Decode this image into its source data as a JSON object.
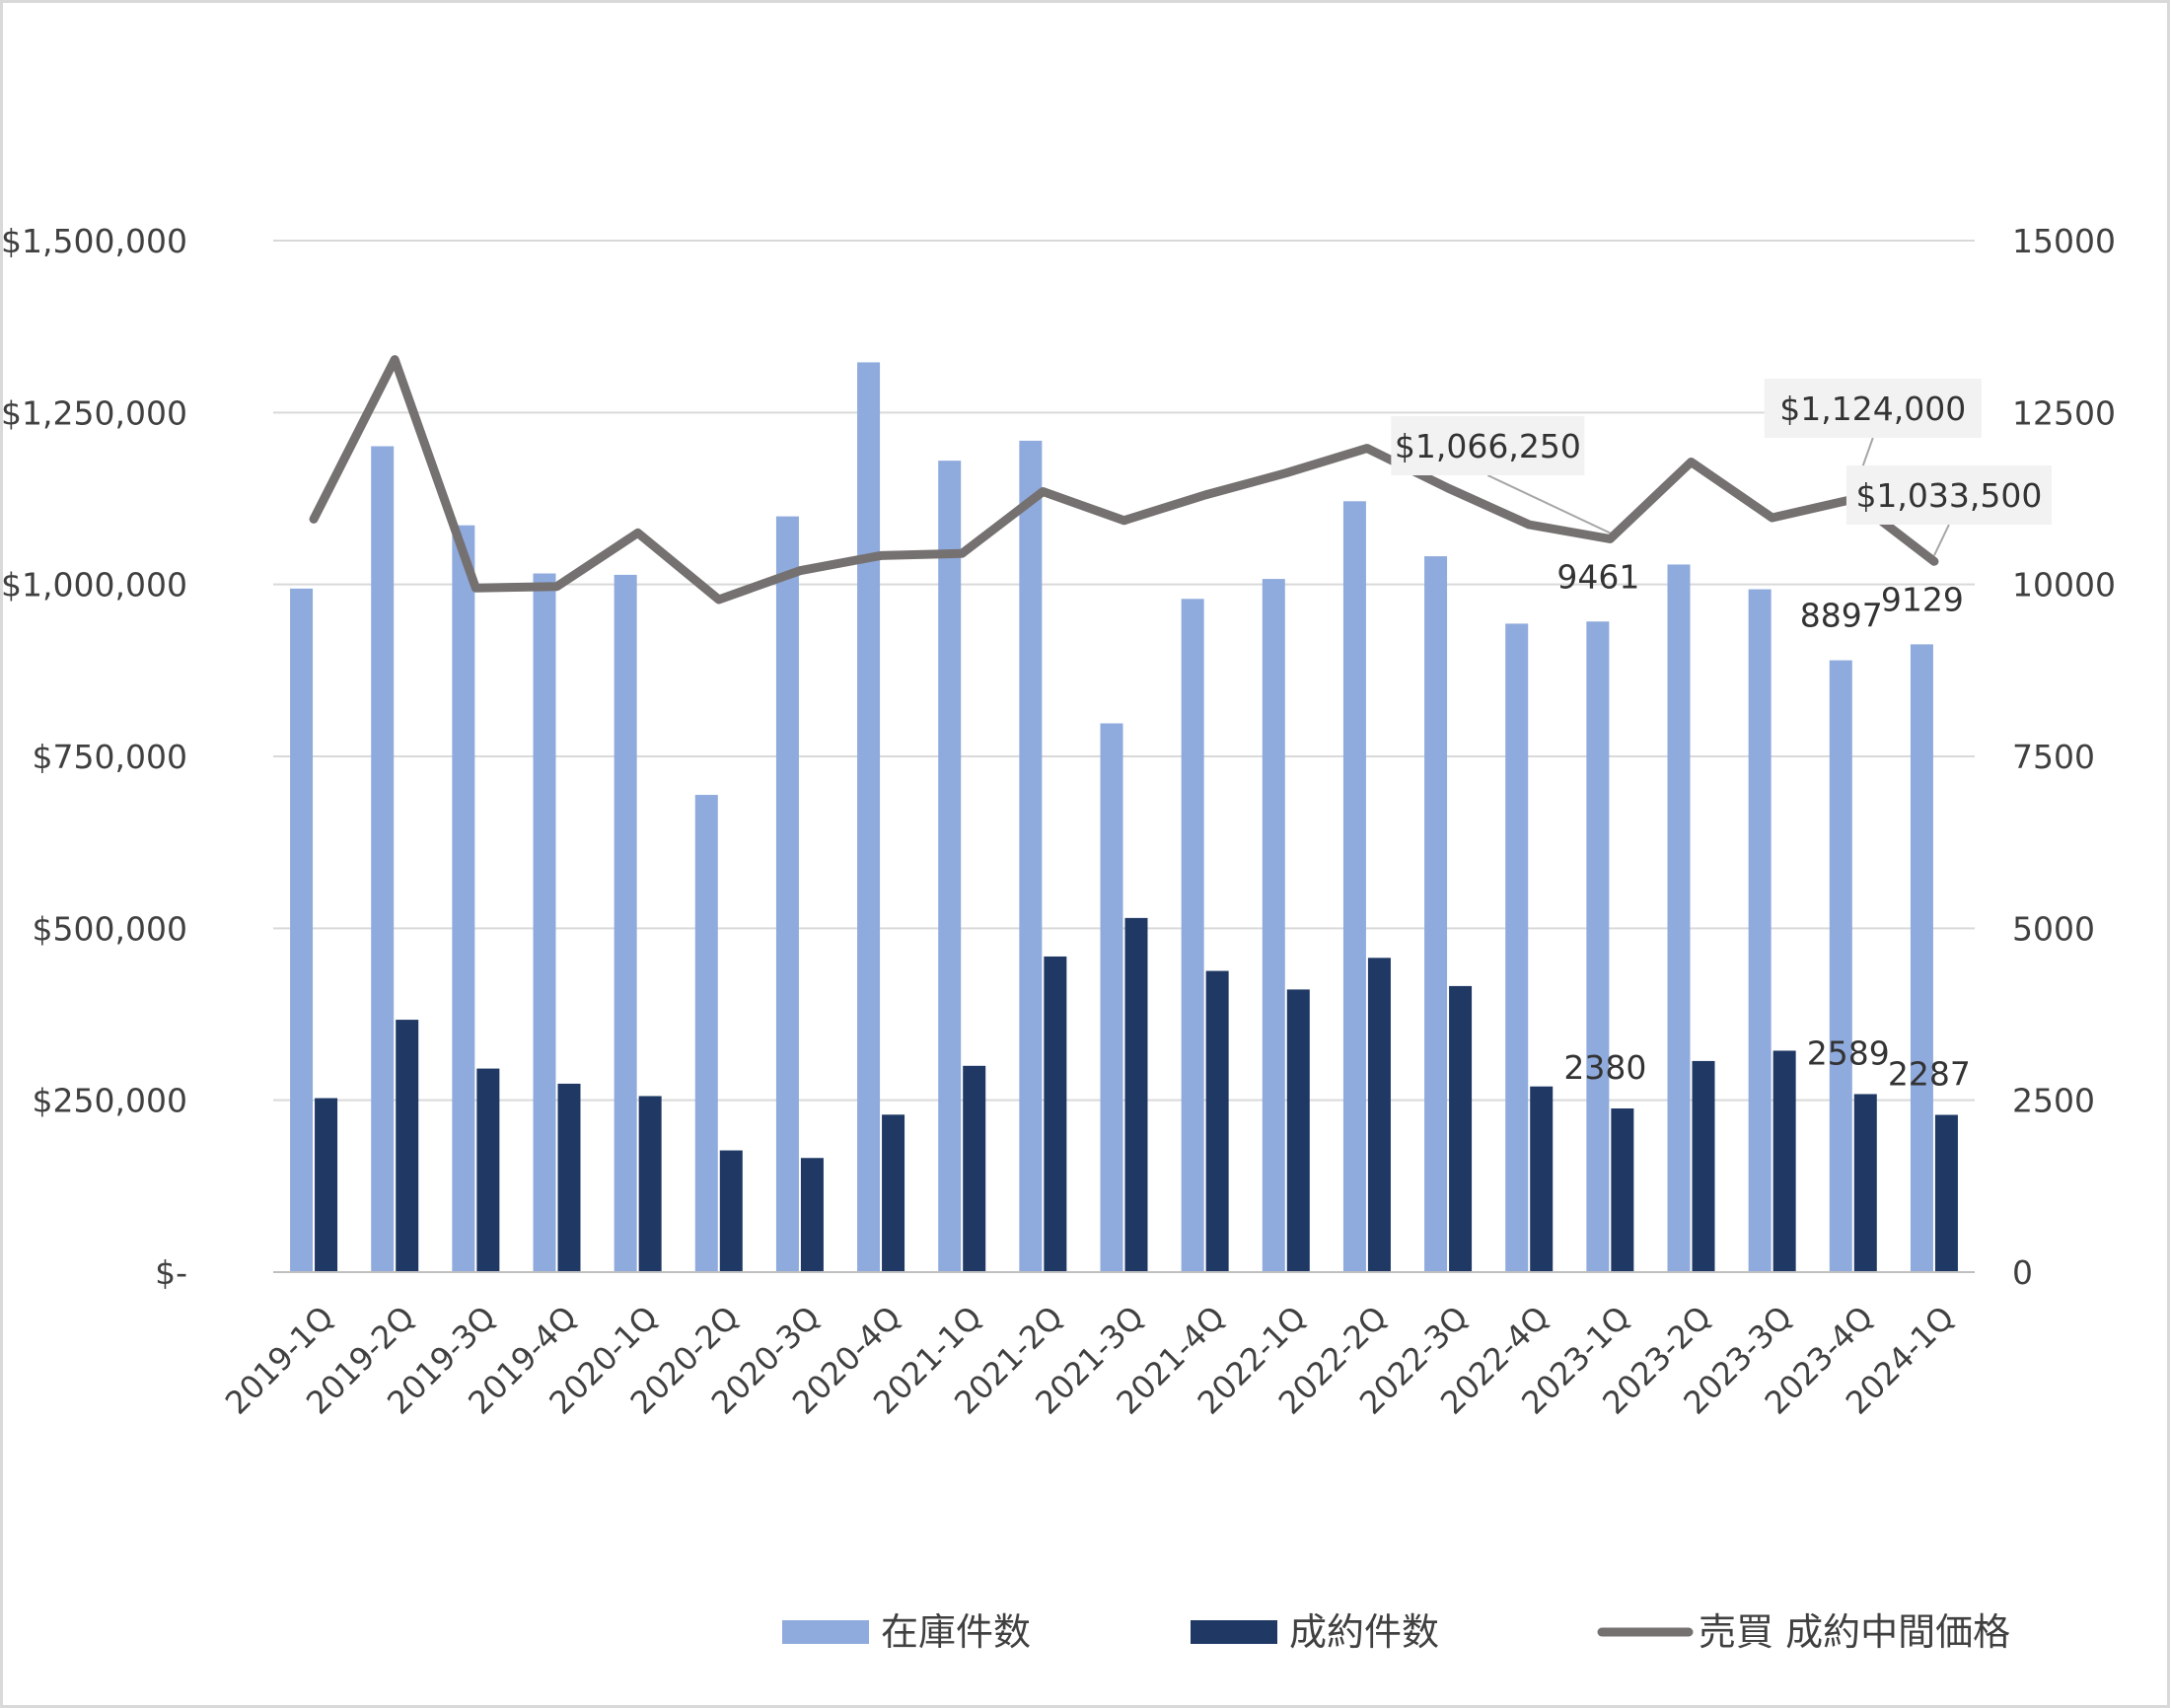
{
  "chart_data": {
    "type": "bar",
    "title": "",
    "categories": [
      "2019-1Q",
      "2019-2Q",
      "2019-3Q",
      "2019-4Q",
      "2020-1Q",
      "2020-2Q",
      "2020-3Q",
      "2020-4Q",
      "2021-1Q",
      "2021-2Q",
      "2021-3Q",
      "2021-4Q",
      "2022-1Q",
      "2022-2Q",
      "2022-3Q",
      "2022-4Q",
      "2023-1Q",
      "2023-2Q",
      "2023-3Q",
      "2023-4Q",
      "2024-1Q"
    ],
    "series": [
      {
        "name": "在庫件数",
        "type": "bar",
        "axis": "right",
        "color": "#8faadc",
        "values": [
          9940,
          12010,
          10860,
          10160,
          10140,
          6940,
          10990,
          13230,
          11800,
          12090,
          7980,
          9790,
          10080,
          11210,
          10410,
          9430,
          9461,
          10290,
          9930,
          8897,
          9129
        ]
      },
      {
        "name": "成約件数",
        "type": "bar",
        "axis": "right",
        "color": "#1f3864",
        "values": [
          2530,
          3670,
          2960,
          2740,
          2560,
          1770,
          1660,
          2290,
          3000,
          4590,
          5150,
          4380,
          4110,
          4570,
          4160,
          2700,
          2380,
          3070,
          3220,
          2589,
          2287
        ]
      },
      {
        "name": "売買 成約中間価格",
        "type": "line",
        "axis": "left",
        "color": "#767171",
        "values": [
          1095000,
          1327000,
          995000,
          997000,
          1075000,
          978000,
          1020000,
          1042000,
          1045000,
          1135000,
          1093000,
          1130000,
          1162000,
          1198000,
          1140000,
          1087000,
          1066250,
          1178000,
          1097000,
          1124000,
          1033500
        ]
      }
    ],
    "y_left": {
      "ticks": [
        "$1,500,000",
        "$1,250,000",
        "$1,000,000",
        "$750,000",
        "$500,000",
        "$250,000",
        "$-"
      ],
      "ylim": [
        0,
        1500000
      ]
    },
    "y_right": {
      "ticks": [
        "15000",
        "12500",
        "10000",
        "7500",
        "5000",
        "2500",
        "0"
      ],
      "ylim": [
        0,
        15000
      ]
    },
    "data_labels": {
      "inventory": [
        {
          "index": 16,
          "text": "9461"
        },
        {
          "index": 19,
          "text": "8897"
        },
        {
          "index": 20,
          "text": "9129"
        }
      ],
      "sales": [
        {
          "index": 16,
          "text": "2380"
        },
        {
          "index": 19,
          "text": "2589"
        },
        {
          "index": 20,
          "text": "2287"
        }
      ],
      "price_callouts": [
        {
          "index": 16,
          "text": "$1,066,250"
        },
        {
          "index": 19,
          "text": "$1,124,000"
        },
        {
          "index": 20,
          "text": "$1,033,500"
        }
      ]
    },
    "grid": true,
    "legend_position": "bottom"
  }
}
